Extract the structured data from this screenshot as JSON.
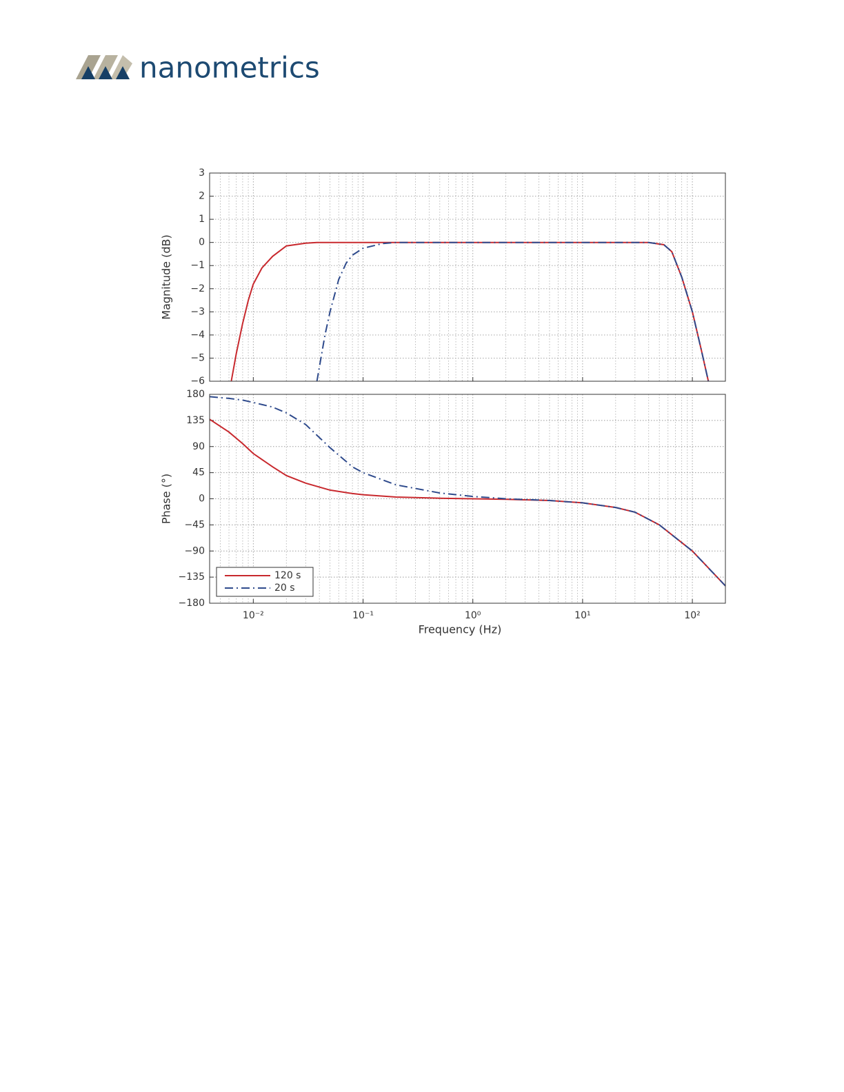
{
  "header": {
    "logo_text": "nanometrics"
  },
  "chart_data": [
    {
      "type": "line",
      "ylabel": "Magnitude (dB)",
      "xscale": "log",
      "grid": true,
      "x": [
        0.0063,
        0.007,
        0.008,
        0.009,
        0.01,
        0.012,
        0.015,
        0.02,
        0.03,
        0.038,
        0.045,
        0.05,
        0.06,
        0.07,
        0.08,
        0.1,
        0.15,
        0.2,
        0.3,
        0.5,
        1,
        2,
        5,
        10,
        20,
        40,
        55,
        65,
        80,
        100,
        120,
        140
      ],
      "series": [
        {
          "name": "120 s",
          "color": "#c8282d",
          "dash": "solid",
          "values": [
            -6,
            -4.8,
            -3.5,
            -2.5,
            -1.8,
            -1.1,
            -0.6,
            -0.15,
            -0.03,
            0,
            0,
            0,
            0,
            0,
            0,
            0,
            0,
            0,
            0,
            0,
            0,
            0,
            0,
            0,
            0,
            0,
            -0.1,
            -0.4,
            -1.5,
            -3,
            -4.6,
            -6
          ]
        },
        {
          "name": "20 s",
          "color": "#2e4a8c",
          "dash": "dashdot",
          "values": [
            null,
            null,
            null,
            null,
            null,
            null,
            null,
            null,
            null,
            -6,
            -4,
            -3,
            -1.6,
            -0.9,
            -0.55,
            -0.25,
            -0.05,
            0,
            0,
            0,
            0,
            0,
            0,
            0,
            0,
            0,
            -0.1,
            -0.4,
            -1.5,
            -3,
            -4.6,
            -6
          ]
        }
      ],
      "xlim": [
        0.004,
        200
      ],
      "xticks": [
        0.01,
        0.1,
        1,
        10,
        100
      ],
      "xminorticks": [
        0.004,
        0.005,
        0.006,
        0.007,
        0.008,
        0.009,
        0.02,
        0.03,
        0.04,
        0.05,
        0.06,
        0.07,
        0.08,
        0.09,
        0.2,
        0.3,
        0.4,
        0.5,
        0.6,
        0.7,
        0.8,
        0.9,
        2,
        3,
        4,
        5,
        6,
        7,
        8,
        9,
        20,
        30,
        40,
        50,
        60,
        70,
        80,
        90,
        200
      ],
      "ylim": [
        -6,
        3
      ],
      "yticks": [
        {
          "value": -6,
          "label": "−6"
        },
        {
          "value": -5,
          "label": "−5"
        },
        {
          "value": -4,
          "label": "−4"
        },
        {
          "value": -3,
          "label": "−3"
        },
        {
          "value": -2,
          "label": "−2"
        },
        {
          "value": -1,
          "label": "−1"
        },
        0,
        1,
        2,
        3
      ]
    },
    {
      "type": "line",
      "ylabel": "Phase (°)",
      "xlabel": "Frequency (Hz)",
      "xscale": "log",
      "grid": true,
      "legend": "lower left",
      "x": [
        0.004,
        0.006,
        0.008,
        0.01,
        0.015,
        0.02,
        0.03,
        0.05,
        0.08,
        0.1,
        0.2,
        0.5,
        1,
        2,
        5,
        10,
        20,
        30,
        50,
        100,
        200
      ],
      "series": [
        {
          "name": "120 s",
          "color": "#c8282d",
          "dash": "solid",
          "values": [
            137,
            115,
            95,
            78,
            55,
            40,
            27,
            15,
            9,
            7,
            3,
            1,
            0,
            -1,
            -3,
            -7,
            -15,
            -23,
            -45,
            -90,
            -150
          ]
        },
        {
          "name": "20 s",
          "color": "#2e4a8c",
          "dash": "dashdot",
          "values": [
            176,
            173,
            170,
            166,
            158,
            148,
            128,
            88,
            55,
            45,
            24,
            10,
            4,
            0,
            -3,
            -7,
            -15,
            -23,
            -45,
            -90,
            -150
          ]
        }
      ],
      "xlim": [
        0.004,
        200
      ],
      "xticks": [
        {
          "value": 0.01,
          "label": "10⁻²"
        },
        {
          "value": 0.1,
          "label": "10⁻¹"
        },
        {
          "value": 1,
          "label": "10⁰"
        },
        {
          "value": 10,
          "label": "10¹"
        },
        {
          "value": 100,
          "label": "10²"
        }
      ],
      "xminorticks": [
        0.004,
        0.005,
        0.006,
        0.007,
        0.008,
        0.009,
        0.02,
        0.03,
        0.04,
        0.05,
        0.06,
        0.07,
        0.08,
        0.09,
        0.2,
        0.3,
        0.4,
        0.5,
        0.6,
        0.7,
        0.8,
        0.9,
        2,
        3,
        4,
        5,
        6,
        7,
        8,
        9,
        20,
        30,
        40,
        50,
        60,
        70,
        80,
        90,
        200
      ],
      "ylim": [
        -180,
        180
      ],
      "yticks": [
        {
          "value": -180,
          "label": "−180"
        },
        {
          "value": -135,
          "label": "−135"
        },
        {
          "value": -90,
          "label": "−90"
        },
        {
          "value": -45,
          "label": "−45"
        },
        0,
        45,
        90,
        135,
        180
      ]
    }
  ]
}
